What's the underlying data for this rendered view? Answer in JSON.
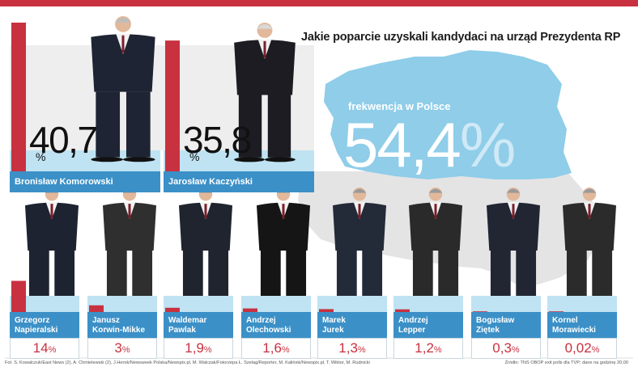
{
  "title": "Jakie poparcie uzyskali kandydaci na urząd Prezydenta RP",
  "turnout": {
    "label": "frekwencja w Polsce",
    "value": "54,4",
    "unit": "%"
  },
  "colors": {
    "bar": "#c8313f",
    "accent_blue": "#3b90c7",
    "map": "#8fcde9",
    "map_land": "#e4e4e4",
    "pedestal": "#bfe3f2"
  },
  "top_candidates": [
    {
      "name": "Bronisław Komorowski",
      "value_text": "40,7",
      "unit": "%"
    },
    {
      "name": "Jarosław Kaczyński",
      "value_text": "35,8",
      "unit": "%"
    }
  ],
  "small_candidates": [
    {
      "line1": "Grzegorz",
      "line2": "Napieralski",
      "value_text": "14",
      "unit": "%"
    },
    {
      "line1": "Janusz",
      "line2": "Korwin-Mikke",
      "value_text": "3",
      "unit": "%"
    },
    {
      "line1": "Waldemar",
      "line2": "Pawlak",
      "value_text": "1,9",
      "unit": "%"
    },
    {
      "line1": "Andrzej",
      "line2": "Olechowski",
      "value_text": "1,6",
      "unit": "%"
    },
    {
      "line1": "Marek",
      "line2": "Jurek",
      "value_text": "1,3",
      "unit": "%"
    },
    {
      "line1": "Andrzej",
      "line2": "Lepper",
      "value_text": "1,2",
      "unit": "%"
    },
    {
      "line1": "Bogusław",
      "line2": "Ziętek",
      "value_text": "0,3",
      "unit": "%"
    },
    {
      "line1": "Kornel",
      "line2": "Morawiecki",
      "value_text": "0,02",
      "unit": "%"
    }
  ],
  "chart_data": {
    "type": "bar",
    "title": "Jakie poparcie uzyskali kandydaci na urząd Prezydenta RP",
    "categories": [
      "Bronisław Komorowski",
      "Jarosław Kaczyński",
      "Grzegorz Napieralski",
      "Janusz Korwin-Mikke",
      "Waldemar Pawlak",
      "Andrzej Olechowski",
      "Marek Jurek",
      "Andrzej Lepper",
      "Bogusław Ziętek",
      "Kornel Morawiecki"
    ],
    "values": [
      40.7,
      35.8,
      14,
      3,
      1.9,
      1.6,
      1.3,
      1.2,
      0.3,
      0.02
    ],
    "unit": "%",
    "ylim": [
      0,
      40.7
    ],
    "turnout": 54.4
  },
  "footer": {
    "credits": "Fot. S. Kowalczuk/East News (2), A. Chmielewski (2), J.Herok/Newsweek Polska/Newspix.pl, M. Walczak/Fotorzepa Ł. Szelag/Reporter, M. Kaliński/Newspix.pl, T. Wiktor, M. Rudnicki",
    "source": "Źródło: TNS OBOP exit polls dla TVP; dane na godzinę 20.00"
  }
}
